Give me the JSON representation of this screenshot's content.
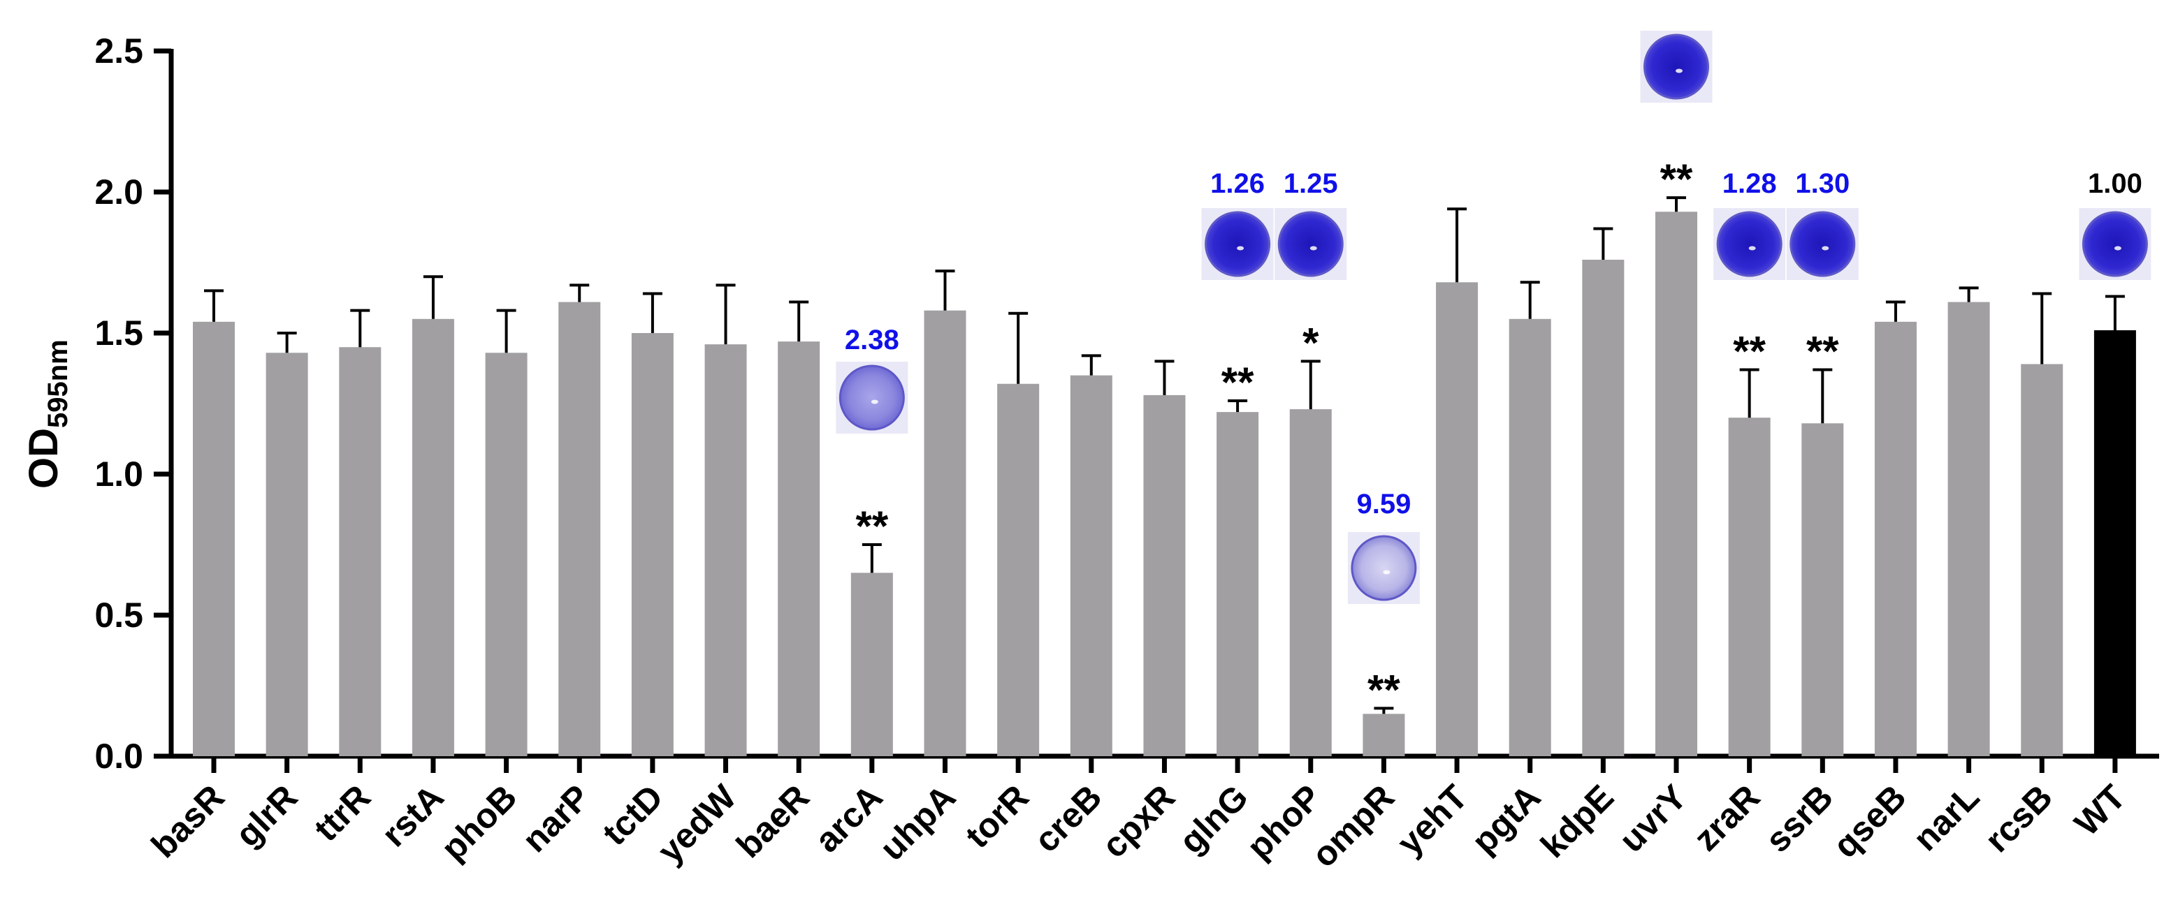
{
  "chart_data": {
    "type": "bar",
    "title": "",
    "xlabel": "",
    "ylabel_main": "OD",
    "ylabel_sub": "595nm",
    "ylim": [
      0,
      2.5
    ],
    "yticks": [
      "0.0",
      "0.5",
      "1.0",
      "1.5",
      "2.0",
      "2.5"
    ],
    "categories": [
      "basR",
      "glrR",
      "ttrR",
      "rstA",
      "phoB",
      "narP",
      "tctD",
      "yedW",
      "baeR",
      "arcA",
      "uhpA",
      "torR",
      "creB",
      "cpxR",
      "glnG",
      "phoP",
      "ompR",
      "yehT",
      "pgtA",
      "kdpE",
      "uvrY",
      "zraR",
      "ssrB",
      "qseB",
      "narL",
      "rcsB",
      "WT"
    ],
    "values": [
      1.54,
      1.43,
      1.45,
      1.55,
      1.43,
      1.61,
      1.5,
      1.46,
      1.47,
      0.65,
      1.58,
      1.32,
      1.35,
      1.28,
      1.22,
      1.23,
      0.15,
      1.68,
      1.55,
      1.76,
      1.93,
      1.2,
      1.18,
      1.54,
      1.61,
      1.39,
      1.51
    ],
    "errors": [
      0.11,
      0.07,
      0.13,
      0.15,
      0.15,
      0.06,
      0.14,
      0.21,
      0.14,
      0.1,
      0.14,
      0.25,
      0.07,
      0.12,
      0.04,
      0.17,
      0.02,
      0.26,
      0.13,
      0.11,
      0.05,
      0.17,
      0.19,
      0.07,
      0.05,
      0.25,
      0.12
    ],
    "significance": [
      "",
      "",
      "",
      "",
      "",
      "",
      "",
      "",
      "",
      "**",
      "",
      "",
      "",
      "",
      "**",
      "*",
      "**",
      "",
      "",
      "",
      "**",
      "**",
      "**",
      "",
      "",
      "",
      ""
    ],
    "well_ratios": [
      "",
      "",
      "",
      "",
      "",
      "",
      "",
      "",
      "",
      "2.38",
      "",
      "",
      "",
      "",
      "1.26",
      "1.25",
      "9.59",
      "",
      "",
      "",
      "",
      "1.28",
      "1.30",
      "",
      "",
      "",
      "1.00"
    ],
    "well_images": [
      "",
      "",
      "",
      "",
      "",
      "",
      "",
      "",
      "",
      "crystal-violet-well",
      "",
      "",
      "",
      "",
      "crystal-violet-well",
      "crystal-violet-well",
      "crystal-violet-well",
      "",
      "",
      "",
      "crystal-violet-well",
      "crystal-violet-well",
      "crystal-violet-well",
      "",
      "",
      "",
      "crystal-violet-well"
    ],
    "colors": {
      "bar": "#a19fa2",
      "control_bar": "#000000",
      "ratio_text": "#1010e8",
      "control_ratio_text": "#000000",
      "well_dark": "#2a22c8",
      "well_light": "#8a86e0"
    }
  }
}
